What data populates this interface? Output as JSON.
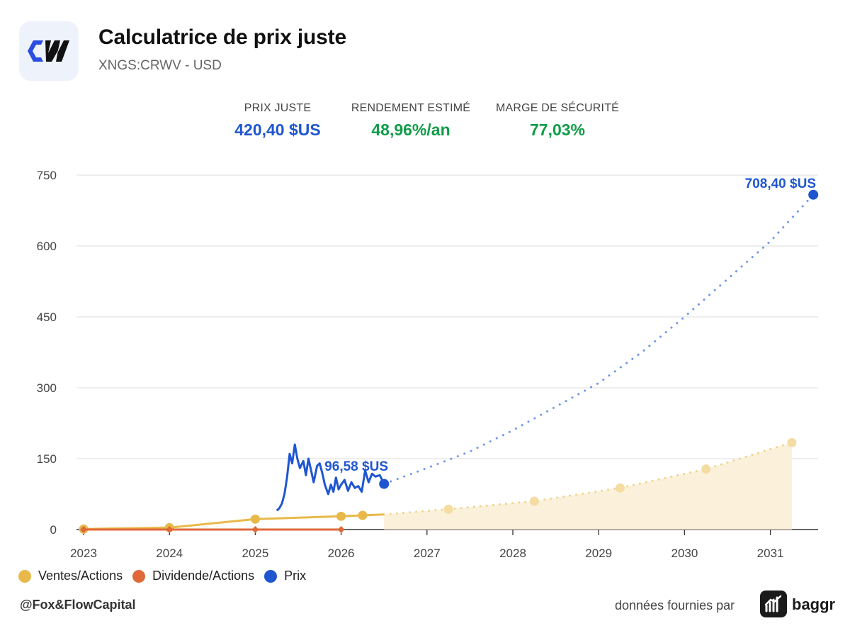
{
  "header": {
    "title": "Calculatrice de prix juste",
    "subtitle": "XNGS:CRWV - USD"
  },
  "kpis": [
    {
      "label": "PRIX JUSTE",
      "value": "420,40 $US"
    },
    {
      "label": "RENDEMENT ESTIMÉ",
      "value": "48,96%/an"
    },
    {
      "label": "MARGE DE SÉCURITÉ",
      "value": "77,03%"
    }
  ],
  "legend": [
    {
      "label": "Ventes/Actions",
      "color": "#e8b94a"
    },
    {
      "label": "Dividende/Actions",
      "color": "#e0693a"
    },
    {
      "label": "Prix",
      "color": "#1f56d0"
    }
  ],
  "footer": {
    "handle": "@Fox&FlowCapital",
    "provided_by": "données fournies par",
    "brand": "baggr"
  },
  "chart_data": {
    "type": "line",
    "x_ticks": [
      "2023",
      "2024",
      "2025",
      "2026",
      "2027",
      "2028",
      "2029",
      "2030",
      "2031"
    ],
    "y_ticks": [
      0,
      150,
      300,
      450,
      600,
      750
    ],
    "ylim": [
      0,
      750
    ],
    "xlim": [
      2023,
      2031.55
    ],
    "grid": true,
    "legend_position": "bottom-left",
    "annotations": {
      "current_price_label": "96,58 $US",
      "projected_price_label": "708,40 $US"
    },
    "series": [
      {
        "name": "Ventes/Actions",
        "color": "#e8b94a",
        "actual": [
          [
            2023.0,
            1
          ],
          [
            2024.0,
            4
          ],
          [
            2025.0,
            22
          ],
          [
            2026.0,
            28
          ],
          [
            2026.25,
            30
          ],
          [
            2026.5,
            32
          ]
        ],
        "projected": [
          [
            2026.5,
            32
          ],
          [
            2027.25,
            43
          ],
          [
            2028.25,
            60
          ],
          [
            2029.25,
            88
          ],
          [
            2030.25,
            128
          ],
          [
            2031.25,
            184
          ]
        ]
      },
      {
        "name": "Dividende/Actions",
        "color": "#e0693a",
        "actual": [
          [
            2023.0,
            0
          ],
          [
            2024.0,
            0
          ],
          [
            2025.0,
            0
          ],
          [
            2026.0,
            0
          ]
        ]
      },
      {
        "name": "Prix",
        "color": "#1f56d0",
        "actual": [
          [
            2025.25,
            40
          ],
          [
            2025.28,
            45
          ],
          [
            2025.31,
            55
          ],
          [
            2025.34,
            75
          ],
          [
            2025.37,
            110
          ],
          [
            2025.4,
            160
          ],
          [
            2025.43,
            140
          ],
          [
            2025.46,
            180
          ],
          [
            2025.49,
            150
          ],
          [
            2025.52,
            130
          ],
          [
            2025.56,
            145
          ],
          [
            2025.59,
            115
          ],
          [
            2025.62,
            150
          ],
          [
            2025.65,
            125
          ],
          [
            2025.68,
            100
          ],
          [
            2025.72,
            135
          ],
          [
            2025.75,
            140
          ],
          [
            2025.78,
            120
          ],
          [
            2025.81,
            95
          ],
          [
            2025.85,
            75
          ],
          [
            2025.88,
            95
          ],
          [
            2025.91,
            80
          ],
          [
            2025.94,
            110
          ],
          [
            2025.97,
            85
          ],
          [
            2026.0,
            95
          ],
          [
            2026.04,
            105
          ],
          [
            2026.08,
            82
          ],
          [
            2026.12,
            100
          ],
          [
            2026.16,
            88
          ],
          [
            2026.2,
            92
          ],
          [
            2026.24,
            80
          ],
          [
            2026.28,
            125
          ],
          [
            2026.32,
            100
          ],
          [
            2026.36,
            118
          ],
          [
            2026.4,
            112
          ],
          [
            2026.45,
            115
          ],
          [
            2026.5,
            96.58
          ]
        ],
        "projected": [
          [
            2026.5,
            96.58
          ],
          [
            2027.0,
            130
          ],
          [
            2027.5,
            165
          ],
          [
            2028.0,
            210
          ],
          [
            2028.5,
            260
          ],
          [
            2029.0,
            310
          ],
          [
            2029.5,
            375
          ],
          [
            2030.0,
            450
          ],
          [
            2030.5,
            530
          ],
          [
            2031.0,
            610
          ],
          [
            2031.5,
            708.4
          ]
        ]
      }
    ]
  }
}
